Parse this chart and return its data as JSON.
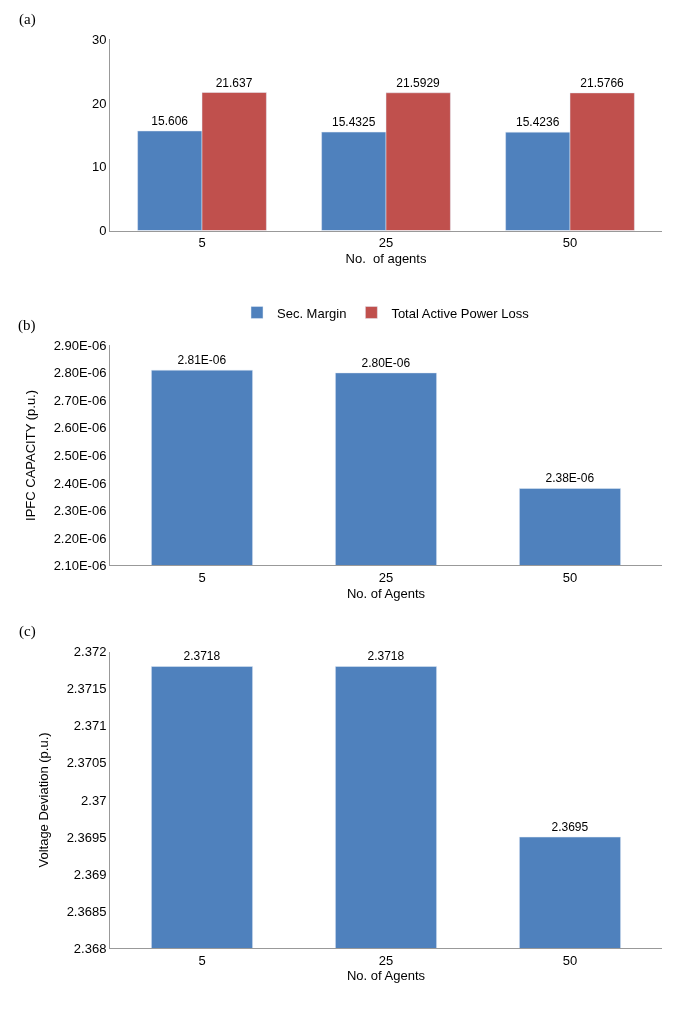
{
  "chart_data": [
    {
      "type": "bar",
      "title": "(a)",
      "xlabel": "No.  of agents",
      "categories": [
        "5",
        "25",
        "50"
      ],
      "series": [
        {
          "name": "Sec. Margin",
          "color": "#4f81bd",
          "values": [
            15.606,
            15.4325,
            15.4236
          ]
        },
        {
          "name": "Total Active Power Loss",
          "color": "#c0504d",
          "values": [
            21.637,
            21.5929,
            21.5766
          ]
        }
      ],
      "ylim": [
        0,
        30
      ],
      "yticks": [
        0,
        10,
        20,
        30
      ],
      "data_labels": true,
      "legend": "bottom"
    },
    {
      "type": "bar",
      "title": "(b)",
      "xlabel": "No. of Agents",
      "ylabel": "IPFC CAPACITY (p.u.)",
      "categories": [
        "5",
        "25",
        "50"
      ],
      "values": [
        2.81e-06,
        2.8e-06,
        2.38e-06
      ],
      "value_labels": [
        "2.81E-06",
        "2.80E-06",
        "2.38E-06"
      ],
      "color": "#4f81bd",
      "ylim": [
        2.1e-06,
        2.9e-06
      ],
      "yticks": [
        {
          "value": 2.1e-06,
          "label": "2.10E-06"
        },
        {
          "value": 2.2e-06,
          "label": "2.20E-06"
        },
        {
          "value": 2.3e-06,
          "label": "2.30E-06"
        },
        {
          "value": 2.4e-06,
          "label": "2.40E-06"
        },
        {
          "value": 2.5e-06,
          "label": "2.50E-06"
        },
        {
          "value": 2.6e-06,
          "label": "2.60E-06"
        },
        {
          "value": 2.7e-06,
          "label": "2.70E-06"
        },
        {
          "value": 2.8e-06,
          "label": "2.80E-06"
        },
        {
          "value": 2.9e-06,
          "label": "2.90E-06"
        }
      ]
    },
    {
      "type": "bar",
      "title": "(c)",
      "xlabel": "No. of Agents",
      "ylabel": "Voltage Deviation (p.u.)",
      "categories": [
        "5",
        "25",
        "50"
      ],
      "values": [
        2.3718,
        2.3718,
        2.3695
      ],
      "color": "#4f81bd",
      "data_labels": true,
      "ylim": [
        2.368,
        2.372
      ],
      "yticks": [
        2.368,
        2.3685,
        2.369,
        2.3695,
        2.37,
        2.3705,
        2.371,
        2.3715,
        2.372
      ]
    }
  ]
}
